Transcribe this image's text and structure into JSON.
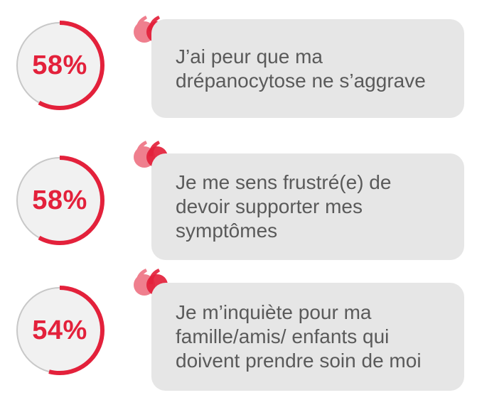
{
  "colors": {
    "accent": "#e3213b",
    "accent_light": "#ef7f8e",
    "ring_track": "#c8c8c8",
    "ring_fill": "#f1f1f1",
    "bubble_bg": "#e6e6e6",
    "text": "#5a5a5a"
  },
  "stats": [
    {
      "percent_label": "58%",
      "percent_value": 0.58,
      "quote": "J’ai peur que ma\ndrépanocytose ne s’aggrave"
    },
    {
      "percent_label": "58%",
      "percent_value": 0.58,
      "quote": "Je me sens frustré(e) de\ndevoir supporter mes\nsymptômes"
    },
    {
      "percent_label": "54%",
      "percent_value": 0.54,
      "quote": "Je m’inquiète pour ma\nfamille/amis/ enfants qui\ndoivent prendre soin de moi"
    }
  ]
}
